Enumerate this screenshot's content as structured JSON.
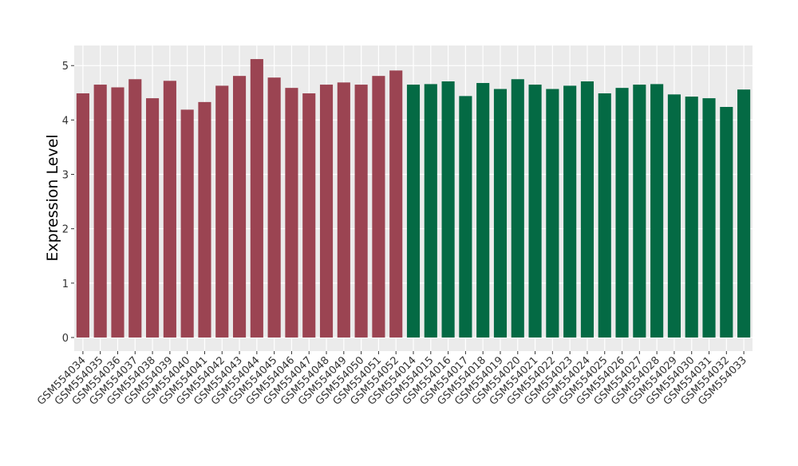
{
  "chart_data": {
    "type": "bar",
    "ylabel": "Expression Level",
    "categories": [
      "GSM554034",
      "GSM554035",
      "GSM554036",
      "GSM554037",
      "GSM554038",
      "GSM554039",
      "GSM554040",
      "GSM554041",
      "GSM554042",
      "GSM554043",
      "GSM554044",
      "GSM554045",
      "GSM554046",
      "GSM554047",
      "GSM554048",
      "GSM554049",
      "GSM554050",
      "GSM554051",
      "GSM554052",
      "GSM554014",
      "GSM554015",
      "GSM554016",
      "GSM554017",
      "GSM554018",
      "GSM554019",
      "GSM554020",
      "GSM554021",
      "GSM554022",
      "GSM554023",
      "GSM554024",
      "GSM554025",
      "GSM554026",
      "GSM554027",
      "GSM554028",
      "GSM554029",
      "GSM554030",
      "GSM554031",
      "GSM554032",
      "GSM554033"
    ],
    "values": [
      4.49,
      4.65,
      4.6,
      4.75,
      4.4,
      4.72,
      4.19,
      4.33,
      4.63,
      4.81,
      5.12,
      4.78,
      4.59,
      4.49,
      4.65,
      4.69,
      4.65,
      4.81,
      4.91,
      4.65,
      4.66,
      4.71,
      4.44,
      4.68,
      4.57,
      4.75,
      4.65,
      4.57,
      4.63,
      4.71,
      4.49,
      4.59,
      4.65,
      4.66,
      4.47,
      4.43,
      4.4,
      4.24,
      4.56
    ],
    "colors": [
      "#9b4452",
      "#9b4452",
      "#9b4452",
      "#9b4452",
      "#9b4452",
      "#9b4452",
      "#9b4452",
      "#9b4452",
      "#9b4452",
      "#9b4452",
      "#9b4452",
      "#9b4452",
      "#9b4452",
      "#9b4452",
      "#9b4452",
      "#9b4452",
      "#9b4452",
      "#9b4452",
      "#9b4452",
      "#046a44",
      "#046a44",
      "#046a44",
      "#046a44",
      "#046a44",
      "#046a44",
      "#046a44",
      "#046a44",
      "#046a44",
      "#046a44",
      "#046a44",
      "#046a44",
      "#046a44",
      "#046a44",
      "#046a44",
      "#046a44",
      "#046a44",
      "#046a44",
      "#046a44",
      "#046a44"
    ],
    "ylim": [
      -0.25,
      5.37
    ],
    "yticks": [
      0,
      1,
      2,
      3,
      4,
      5
    ],
    "grid": true
  }
}
